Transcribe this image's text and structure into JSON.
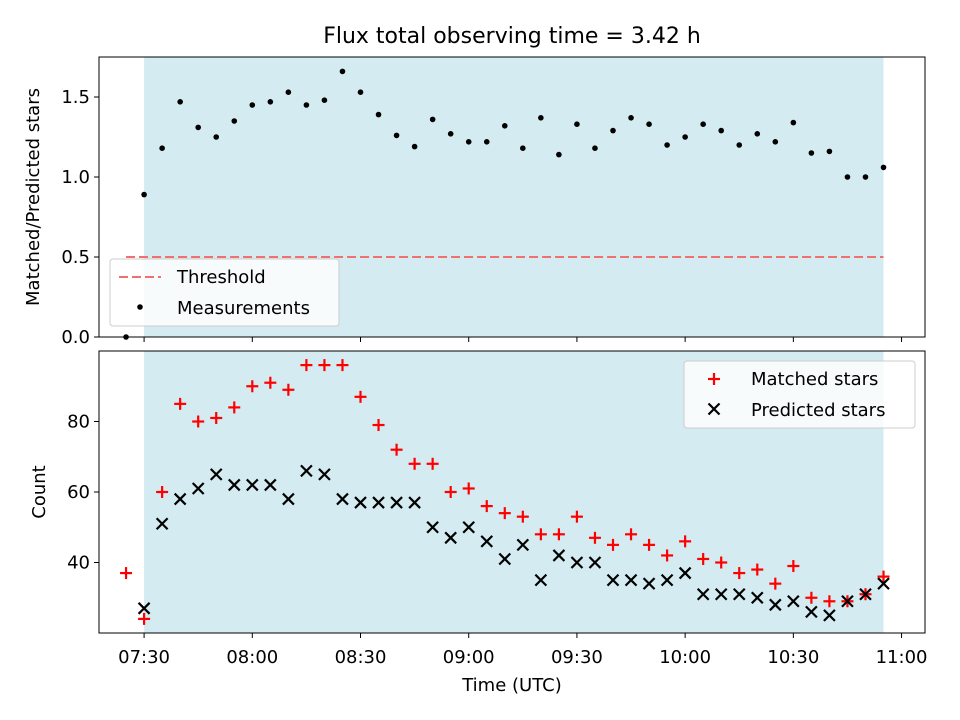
{
  "chart_data": [
    {
      "type": "scatter",
      "title": "Flux total observing time = 3.42 h",
      "xlabel": "",
      "ylabel": "Matched/Predicted stars",
      "ylim": [
        0,
        1.75
      ],
      "yticks": [
        "0.0",
        "0.5",
        "1.0",
        "1.5"
      ],
      "ytick_values": [
        0,
        0.5,
        1.0,
        1.5
      ],
      "threshold": 0.5,
      "threshold_color": "#f07070",
      "shade_color": "#d4ebf1",
      "legend_placement": "lower-left",
      "legend": [
        "Threshold",
        "Measurements"
      ],
      "x": [
        -5,
        0,
        5,
        10,
        15,
        20,
        25,
        30,
        35,
        40,
        45,
        50,
        55,
        60,
        65,
        70,
        75,
        80,
        85,
        90,
        95,
        100,
        105,
        110,
        115,
        120,
        125,
        130,
        135,
        140,
        145,
        150,
        155,
        160,
        165,
        170,
        175,
        180,
        185,
        190,
        195,
        200,
        205
      ],
      "series": [
        {
          "name": "Measurements",
          "color": "#000000",
          "values": [
            0.0,
            0.89,
            1.18,
            1.47,
            1.31,
            1.25,
            1.35,
            1.45,
            1.47,
            1.53,
            1.45,
            1.48,
            1.66,
            1.53,
            1.39,
            1.26,
            1.19,
            1.36,
            1.27,
            1.22,
            1.22,
            1.32,
            1.18,
            1.37,
            1.14,
            1.33,
            1.18,
            1.29,
            1.37,
            1.33,
            1.2,
            1.25,
            1.33,
            1.29,
            1.2,
            1.27,
            1.22,
            1.34,
            1.15,
            1.16,
            1.0,
            1.0,
            1.06
          ]
        }
      ]
    },
    {
      "type": "scatter",
      "xlabel": "Time (UTC)",
      "ylabel": "Count",
      "ylim": [
        20,
        100
      ],
      "yticks": [
        "40",
        "60",
        "80"
      ],
      "ytick_values": [
        40,
        60,
        80
      ],
      "xticks": [
        "07:30",
        "08:00",
        "08:30",
        "09:00",
        "09:30",
        "10:00",
        "10:30",
        "11:00"
      ],
      "xtick_values": [
        0,
        30,
        60,
        90,
        120,
        150,
        180,
        210
      ],
      "legend_placement": "top-right",
      "legend": [
        "Matched stars",
        "Predicted stars"
      ],
      "x": [
        -5,
        0,
        5,
        10,
        15,
        20,
        25,
        30,
        35,
        40,
        45,
        50,
        55,
        60,
        65,
        70,
        75,
        80,
        85,
        90,
        95,
        100,
        105,
        110,
        115,
        120,
        125,
        130,
        135,
        140,
        145,
        150,
        155,
        160,
        165,
        170,
        175,
        180,
        185,
        190,
        195,
        200,
        205
      ],
      "series": [
        {
          "name": "Matched stars",
          "marker": "plus",
          "color": "#ff0000",
          "values": [
            37,
            24,
            60,
            85,
            80,
            81,
            84,
            90,
            91,
            89,
            96,
            96,
            96,
            87,
            79,
            72,
            68,
            68,
            60,
            61,
            56,
            54,
            53,
            48,
            48,
            53,
            47,
            45,
            48,
            45,
            42,
            46,
            41,
            40,
            37,
            38,
            34,
            39,
            30,
            29,
            29,
            31,
            36
          ]
        },
        {
          "name": "Predicted stars",
          "marker": "x",
          "color": "#000000",
          "values": [
            null,
            27,
            51,
            58,
            61,
            65,
            62,
            62,
            62,
            58,
            66,
            65,
            58,
            57,
            57,
            57,
            57,
            50,
            47,
            50,
            46,
            41,
            45,
            35,
            42,
            40,
            40,
            35,
            35,
            34,
            35,
            37,
            31,
            31,
            31,
            30,
            28,
            29,
            26,
            25,
            29,
            31,
            34
          ]
        }
      ]
    }
  ]
}
